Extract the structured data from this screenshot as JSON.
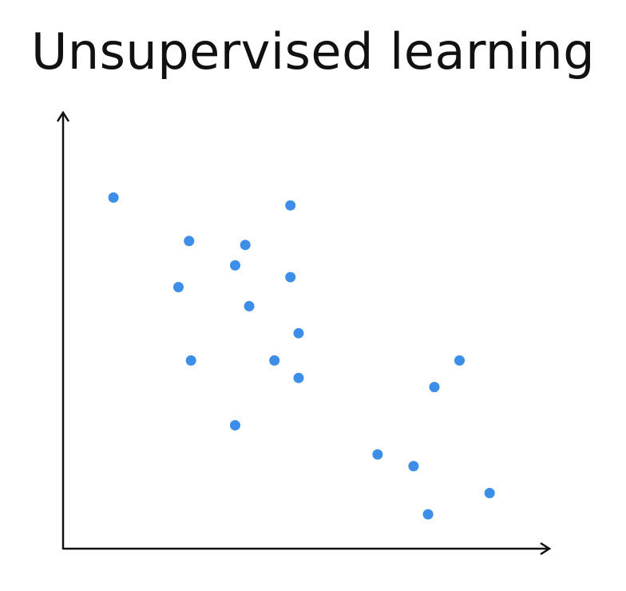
{
  "title": "Unsupervised learning",
  "chart_data": {
    "type": "scatter",
    "title": "Unsupervised learning",
    "xlabel": "",
    "ylabel": "",
    "xlim": [
      0,
      100
    ],
    "ylim": [
      0,
      100
    ],
    "grid": false,
    "legend": "none",
    "point_color": "#3d8ee8",
    "axis_color": "#111111",
    "series": [
      {
        "values": [
          {
            "x": 10.4,
            "y": 80.8
          },
          {
            "x": 26.0,
            "y": 70.8
          },
          {
            "x": 23.8,
            "y": 60.2
          },
          {
            "x": 35.5,
            "y": 65.2
          },
          {
            "x": 37.6,
            "y": 69.9
          },
          {
            "x": 46.9,
            "y": 79.0
          },
          {
            "x": 46.9,
            "y": 62.5
          },
          {
            "x": 38.4,
            "y": 55.8
          },
          {
            "x": 48.6,
            "y": 49.6
          },
          {
            "x": 26.4,
            "y": 43.3
          },
          {
            "x": 43.6,
            "y": 43.3
          },
          {
            "x": 48.6,
            "y": 39.3
          },
          {
            "x": 35.5,
            "y": 28.4
          },
          {
            "x": 64.9,
            "y": 21.7
          },
          {
            "x": 72.3,
            "y": 19.0
          },
          {
            "x": 76.6,
            "y": 37.2
          },
          {
            "x": 81.8,
            "y": 43.3
          },
          {
            "x": 75.3,
            "y": 7.9
          },
          {
            "x": 88.0,
            "y": 12.8
          }
        ]
      }
    ]
  }
}
